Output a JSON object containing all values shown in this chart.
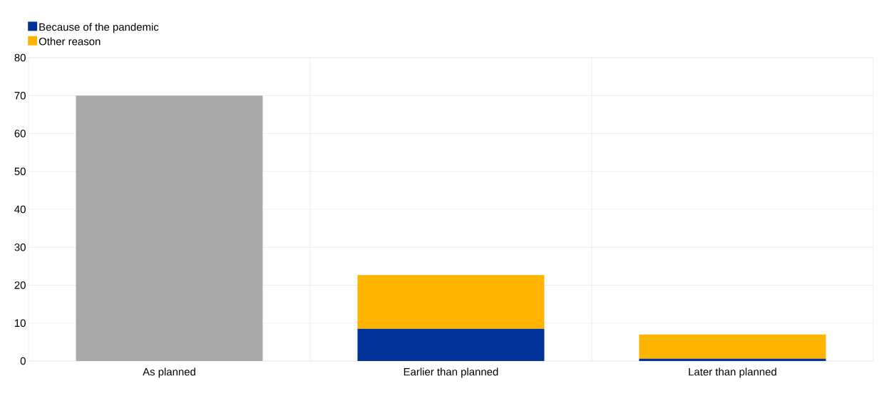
{
  "chart_data": {
    "type": "bar",
    "stacked": true,
    "categories": [
      "As planned",
      "Earlier than planned",
      "Later than planned"
    ],
    "series": [
      {
        "color": "#a9a9a9",
        "values": [
          70,
          null,
          null
        ]
      },
      {
        "name": "Because of the pandemic",
        "color": "#003299",
        "values": [
          null,
          8.5,
          0.6
        ]
      },
      {
        "name": "Other reason",
        "color": "#ffb400",
        "values": [
          null,
          14.2,
          6.4
        ]
      }
    ],
    "ylim": [
      0,
      80
    ],
    "yticks": [
      0,
      10,
      20,
      30,
      40,
      50,
      60,
      70,
      80
    ],
    "grid": true,
    "legend": "top left"
  }
}
